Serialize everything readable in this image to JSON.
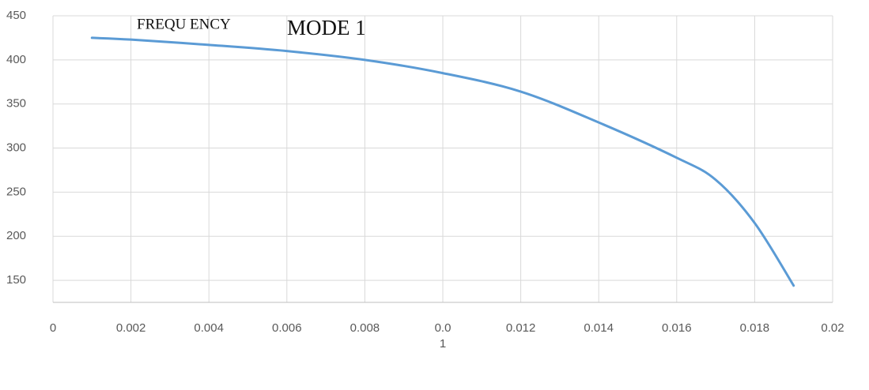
{
  "chart_data": {
    "type": "line",
    "annotations": [
      "FREQU ENCY",
      "MODE 1"
    ],
    "x": [
      0.001,
      0.002,
      0.004,
      0.006,
      0.008,
      0.01,
      0.012,
      0.014,
      0.016,
      0.017,
      0.018,
      0.019
    ],
    "series": [
      {
        "color": "#5b9bd5",
        "values": [
          425,
          423,
          417,
          410,
          400,
          385,
          364,
          329,
          289,
          264,
          215,
          144
        ]
      }
    ],
    "xlim": [
      0,
      0.02
    ],
    "xticks": [
      0,
      0.002,
      0.004,
      0.006,
      0.008,
      {
        "value": 0.01,
        "label": "0.0\n1"
      },
      0.012,
      0.014,
      0.016,
      0.018,
      0.02
    ],
    "ylim": [
      125,
      450
    ],
    "yticks": [
      150,
      200,
      250,
      300,
      350,
      400,
      450
    ],
    "grid": true
  }
}
